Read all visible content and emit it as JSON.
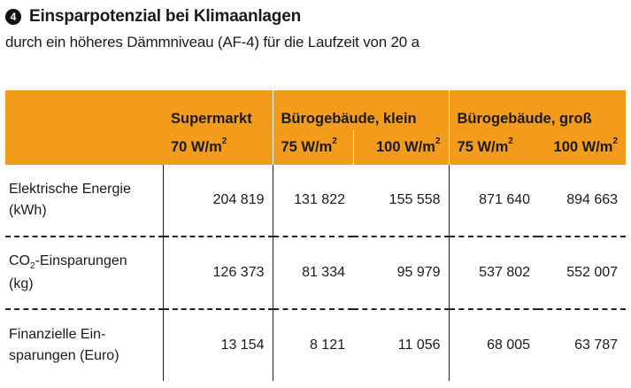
{
  "heading": {
    "number": "4",
    "title": "Einsparpotenzial bei Klimaanlagen",
    "subtitle": "durch ein höheres Dämmniveau (AF-4) für die Laufzeit von 20 a"
  },
  "table": {
    "groups": [
      "Supermarkt",
      "Bürogebäude, klein",
      "Bürogebäude, groß"
    ],
    "subcolumns": [
      {
        "value": "70 W/m",
        "sup": "2"
      },
      {
        "value": "75 W/m",
        "sup": "2"
      },
      {
        "value": "100 W/m",
        "sup": "2"
      },
      {
        "value": "75 W/m",
        "sup": "2"
      },
      {
        "value": "100 W/m",
        "sup": "2"
      }
    ],
    "rows": [
      {
        "label1": "Elektrische Energie",
        "label2": "(kWh)",
        "values": [
          "204 819",
          "131 822",
          "155 558",
          "871 640",
          "894 663"
        ]
      },
      {
        "label1a": "CO",
        "label1sub": "2",
        "label1b": "-Einsparungen",
        "label2": "(kg)",
        "values": [
          "126 373",
          "81 334",
          "95 979",
          "537 802",
          "552 007"
        ]
      },
      {
        "label1": "Finanzielle Ein-",
        "label2": "sparungen (Euro)",
        "values": [
          "13 154",
          "8 121",
          "11 056",
          "68 005",
          "63 787"
        ]
      }
    ]
  },
  "colors": {
    "header_bg": "#f39b1b",
    "text": "#1a1a1a"
  }
}
